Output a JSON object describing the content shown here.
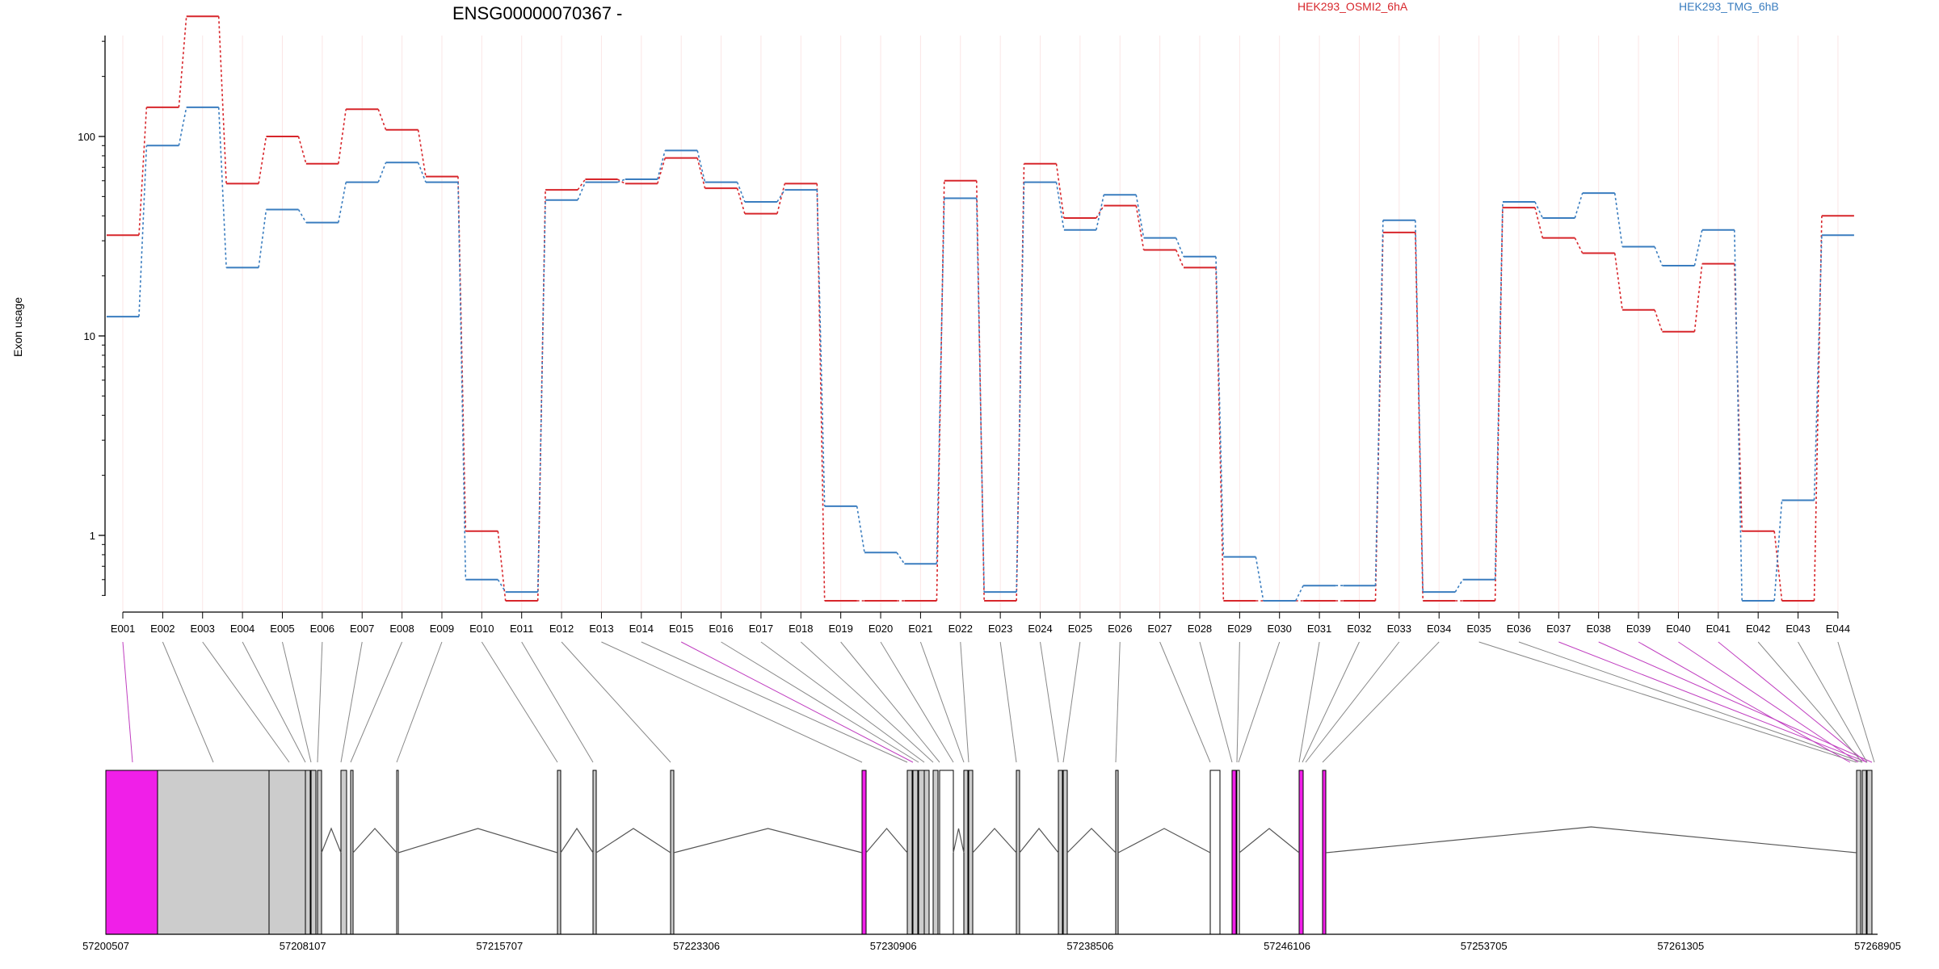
{
  "chart_data": {
    "type": "line",
    "title": "ENSG00000070367 -",
    "ylabel": "Exon usage",
    "xlabel": "",
    "y_scale": "log",
    "y_tick_labels": [
      "1",
      "10",
      "100"
    ],
    "categories": [
      "E001",
      "E002",
      "E003",
      "E004",
      "E005",
      "E006",
      "E007",
      "E008",
      "E009",
      "E010",
      "E011",
      "E012",
      "E013",
      "E014",
      "E015",
      "E016",
      "E017",
      "E018",
      "E019",
      "E020",
      "E021",
      "E022",
      "E023",
      "E024",
      "E025",
      "E026",
      "E027",
      "E028",
      "E029",
      "E030",
      "E031",
      "E032",
      "E033",
      "E034",
      "E035",
      "E036",
      "E037",
      "E038",
      "E039",
      "E040",
      "E041",
      "E042",
      "E043",
      "E044"
    ],
    "series": [
      {
        "name": "HEK293_OSMI2_6hA",
        "color": "#d7262b",
        "values": [
          32,
          140,
          400,
          58,
          100,
          73,
          137,
          108,
          63,
          1.05,
          0.47,
          54,
          61,
          58,
          78,
          55,
          41,
          58,
          0.47,
          0.47,
          0.47,
          60,
          0.47,
          73,
          39,
          45,
          27,
          22,
          0.47,
          0.47,
          0.47,
          0.47,
          33,
          0.47,
          0.47,
          44,
          31,
          26,
          13.5,
          10.5,
          23,
          1.05,
          0.47,
          40
        ]
      },
      {
        "name": "HEK293_TMG_6hB",
        "color": "#3a7dbf",
        "values": [
          12.5,
          90,
          140,
          22,
          43,
          37,
          59,
          74,
          59,
          0.6,
          0.52,
          48,
          59,
          61,
          85,
          59,
          47,
          54,
          1.4,
          0.82,
          0.72,
          49,
          0.52,
          59,
          34,
          51,
          31,
          25,
          0.78,
          0.47,
          0.56,
          0.56,
          38,
          0.52,
          0.6,
          47,
          39,
          52,
          28,
          22.5,
          34,
          0.47,
          1.5,
          32
        ]
      }
    ],
    "gene_model": {
      "genomic_tick_labels": [
        "57200507",
        "57208107",
        "57215707",
        "57223306",
        "57230906",
        "57238506",
        "57246106",
        "57253705",
        "57261305",
        "57268905"
      ],
      "highlighted_exons": [
        "E001",
        "E015",
        "E037",
        "E038",
        "E039",
        "E040",
        "E041"
      ],
      "highlight_color": "#f01fe8",
      "exon_fill_color": "#cccccc"
    }
  }
}
